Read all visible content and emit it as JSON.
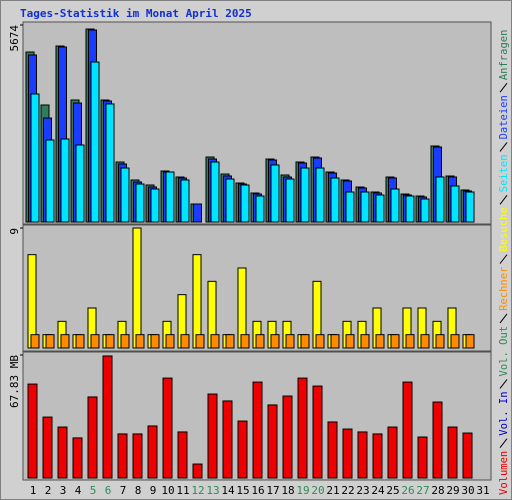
{
  "chart_data": [
    {
      "type": "bar",
      "title": "Tages-Statistik im Monat April 2025",
      "ylim": [
        0,
        5674
      ],
      "yticks": [
        5674
      ],
      "series": [
        {
          "name": "Seiten",
          "color": "#00e5ff",
          "values": [
            3687,
            2362,
            2390,
            2218,
            4608,
            3400,
            1555,
            1094,
            950,
            1440,
            1210,
            0,
            1728,
            1238,
            1066,
            749,
            1642,
            1238,
            1555,
            1555,
            1267,
            864,
            864,
            778,
            950,
            749,
            662,
            1296,
            1037,
            864,
            null
          ]
        },
        {
          "name": "Dateien",
          "color": "#1a3cff",
          "values": [
            4810,
            2995,
            5040,
            3427,
            5530,
            3485,
            1670,
            1152,
            1008,
            1440,
            1267,
            518,
            1814,
            1325,
            1094,
            806,
            1786,
            1296,
            1699,
            1843,
            1411,
            1181,
            979,
            835,
            1267,
            778,
            720,
            2160,
            1296,
            893,
            null
          ]
        },
        {
          "name": "Anfragen",
          "color": "#2e7d5b",
          "values": [
            4896,
            3370,
            5069,
            3514,
            5558,
            3514,
            1728,
            1210,
            1066,
            1469,
            1296,
            518,
            1872,
            1382,
            1123,
            835,
            1814,
            1354,
            1728,
            1872,
            1440,
            1210,
            1008,
            864,
            1296,
            806,
            749,
            2189,
            1325,
            922,
            null
          ]
        }
      ]
    },
    {
      "type": "bar",
      "ylim": [
        0,
        9
      ],
      "yticks": [
        9
      ],
      "series": [
        {
          "name": "Rechner",
          "color": "#ff8c00",
          "values": [
            1,
            1,
            1,
            1,
            1,
            1,
            1,
            1,
            1,
            1,
            1,
            1,
            1,
            1,
            1,
            1,
            1,
            1,
            1,
            1,
            1,
            1,
            1,
            1,
            1,
            1,
            1,
            1,
            1,
            1,
            null
          ]
        },
        {
          "name": "Besuche",
          "color": "#ffff00",
          "values": [
            7,
            1,
            2,
            1,
            3,
            1,
            2,
            9,
            1,
            2,
            4,
            7,
            5,
            1,
            6,
            2,
            2,
            2,
            1,
            5,
            1,
            2,
            2,
            3,
            1,
            3,
            3,
            2,
            3,
            1,
            null
          ]
        }
      ]
    },
    {
      "type": "bar",
      "ylim": [
        0,
        67.83
      ],
      "yticks": [
        {
          "value": 67.83,
          "label": "67.83 MB"
        }
      ],
      "categories": [
        1,
        2,
        3,
        4,
        5,
        6,
        7,
        8,
        9,
        10,
        11,
        12,
        13,
        14,
        15,
        16,
        17,
        18,
        19,
        20,
        21,
        22,
        23,
        24,
        25,
        26,
        27,
        28,
        29,
        30,
        31
      ],
      "category_colors": [
        "#000",
        "#000",
        "#000",
        "#000",
        "#2e8b57",
        "#2e8b57",
        "#000",
        "#000",
        "#000",
        "#000",
        "#000",
        "#2e8b57",
        "#2e8b57",
        "#000",
        "#000",
        "#000",
        "#000",
        "#000",
        "#2e8b57",
        "#2e8b57",
        "#000",
        "#000",
        "#000",
        "#000",
        "#000",
        "#2e8b57",
        "#2e8b57",
        "#000",
        "#000",
        "#000",
        "#000"
      ],
      "series": [
        {
          "name": "Volumen",
          "color": "#ee0000",
          "values": [
            51.8,
            33.6,
            28.1,
            22.1,
            44.7,
            67.3,
            24.3,
            24.3,
            28.7,
            55.1,
            25.4,
            7.7,
            46.3,
            42.5,
            31.4,
            52.9,
            40.3,
            45.2,
            55.1,
            50.7,
            30.9,
            27.0,
            25.4,
            24.3,
            28.1,
            52.9,
            22.6,
            41.9,
            28.1,
            24.8,
            null
          ]
        },
        {
          "name": "Vol. In",
          "color": "#0000cc"
        },
        {
          "name": "Vol. Out",
          "color": "#2e8b57"
        }
      ]
    }
  ]
}
